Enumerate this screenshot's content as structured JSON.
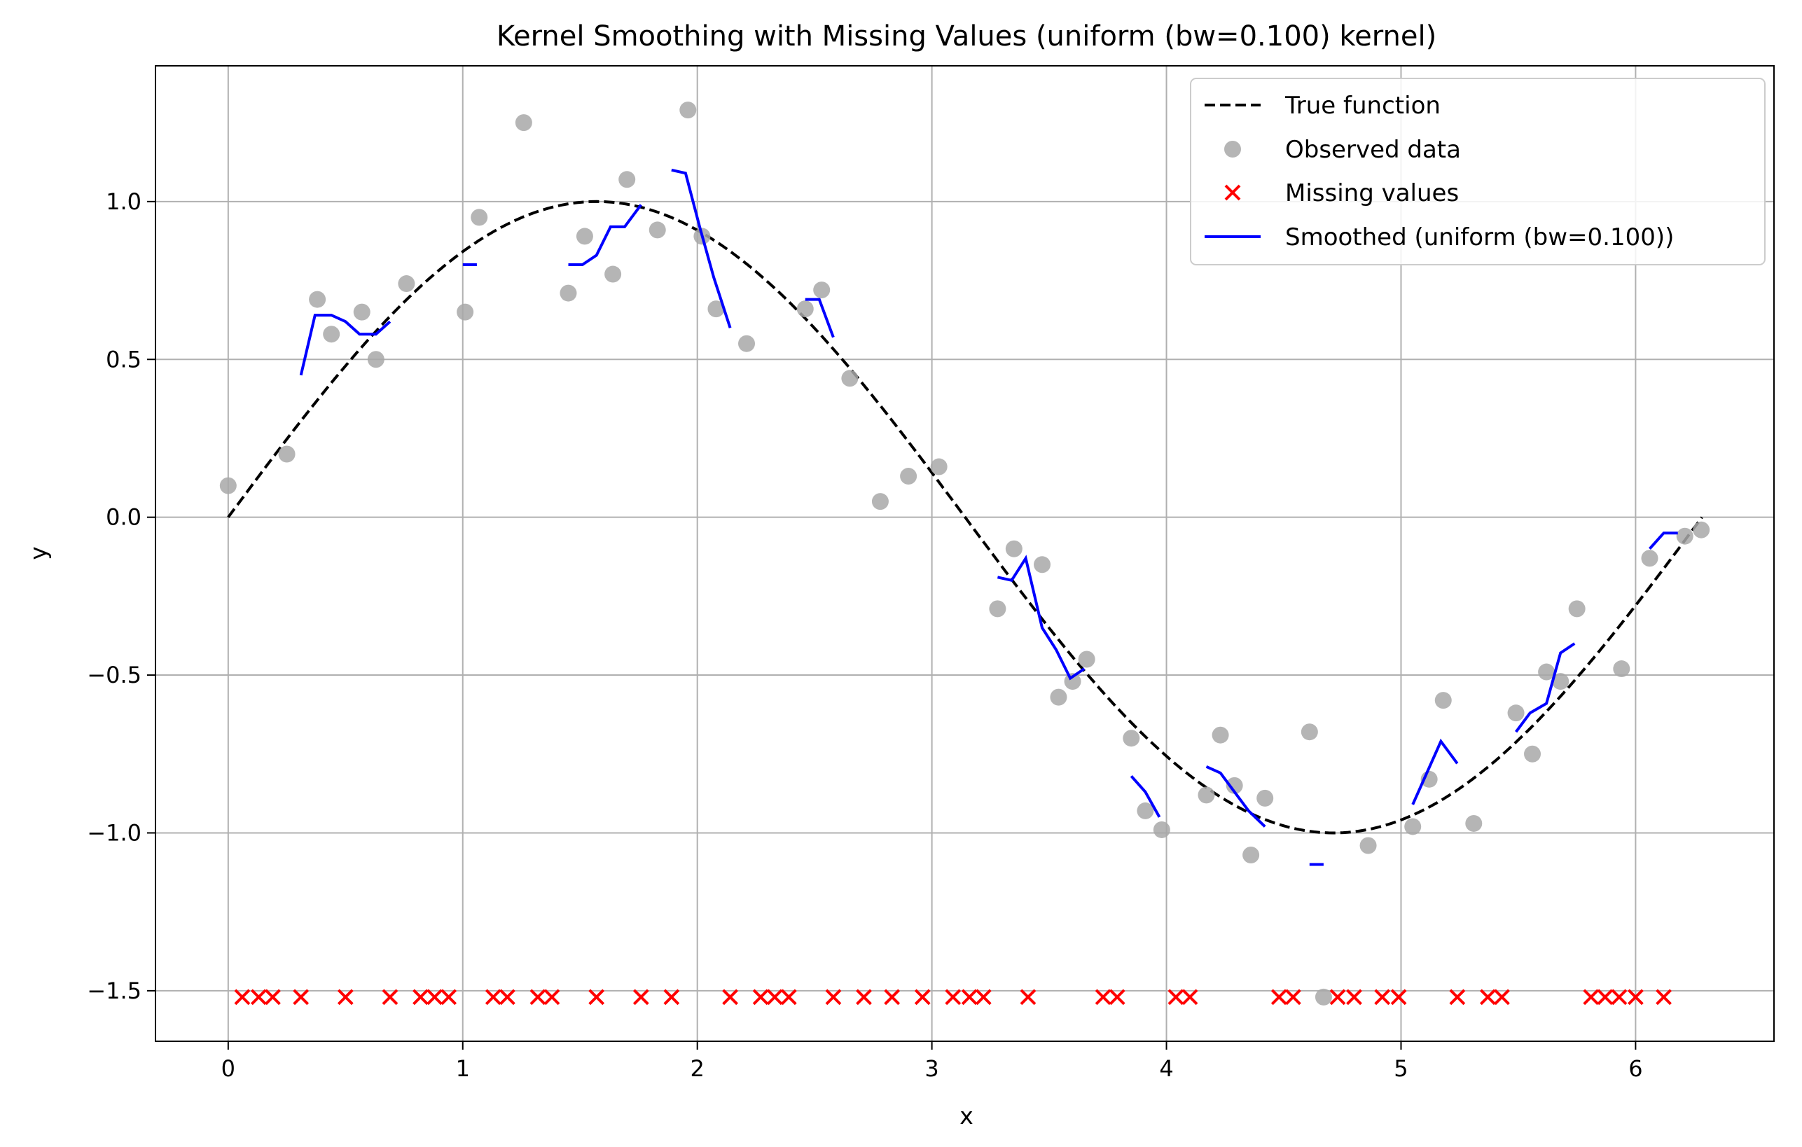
{
  "chart_data": {
    "type": "line",
    "title": "Kernel Smoothing with Missing Values (uniform (bw=0.100) kernel)",
    "xlabel": "x",
    "ylabel": "y",
    "xlim": [
      -0.31,
      6.59
    ],
    "ylim": [
      -1.66,
      1.43
    ],
    "xticks": [
      0,
      1,
      2,
      3,
      4,
      5,
      6
    ],
    "yticks": [
      -1.5,
      -1.0,
      -0.5,
      0.0,
      0.5,
      1.0
    ],
    "xtick_labels": [
      "0",
      "1",
      "2",
      "3",
      "4",
      "5",
      "6"
    ],
    "ytick_labels": [
      "−1.5",
      "−1.0",
      "−0.5",
      "0.0",
      "0.5",
      "1.0"
    ],
    "grid": true,
    "legend_position": "top-right",
    "series": [
      {
        "name": "True function",
        "kind": "line",
        "style": "dashed",
        "color": "#000000",
        "function": "sin(x)",
        "x_range": [
          0,
          6.283
        ]
      },
      {
        "name": "Observed data",
        "kind": "scatter",
        "color": "#a8a8a8",
        "x": [
          0.0,
          0.25,
          0.38,
          0.44,
          0.57,
          0.63,
          0.76,
          1.01,
          1.07,
          1.26,
          1.45,
          1.52,
          1.64,
          1.7,
          1.83,
          1.96,
          2.02,
          2.08,
          2.21,
          2.46,
          2.53,
          2.65,
          2.78,
          2.9,
          3.03,
          3.28,
          3.35,
          3.47,
          3.54,
          3.6,
          3.66,
          3.85,
          3.91,
          3.98,
          4.17,
          4.23,
          4.29,
          4.36,
          4.42,
          4.61,
          4.67,
          4.86,
          5.05,
          5.12,
          5.18,
          5.31,
          5.49,
          5.56,
          5.62,
          5.68,
          5.75,
          5.94,
          6.06,
          6.21,
          6.28
        ],
        "y": [
          0.1,
          0.2,
          0.69,
          0.58,
          0.65,
          0.5,
          0.74,
          0.65,
          0.95,
          1.25,
          0.71,
          0.89,
          0.77,
          1.07,
          0.91,
          1.29,
          0.89,
          0.66,
          0.55,
          0.66,
          0.72,
          0.44,
          0.05,
          0.13,
          0.16,
          -0.29,
          -0.1,
          -0.15,
          -0.57,
          -0.52,
          -0.45,
          -0.7,
          -0.93,
          -0.99,
          -0.88,
          -0.69,
          -0.85,
          -1.07,
          -0.89,
          -0.68,
          -1.52,
          -1.04,
          -0.98,
          -0.83,
          -0.58,
          -0.97,
          -0.62,
          -0.75,
          -0.49,
          -0.52,
          -0.29,
          -0.48,
          -0.13,
          -0.06,
          -0.04
        ]
      },
      {
        "name": "Missing values",
        "kind": "scatter",
        "marker": "x",
        "color": "#ff0000",
        "y_constant": -1.52,
        "x": [
          0.06,
          0.13,
          0.19,
          0.31,
          0.5,
          0.69,
          0.82,
          0.88,
          0.94,
          1.13,
          1.19,
          1.32,
          1.38,
          1.57,
          1.76,
          1.89,
          2.14,
          2.27,
          2.33,
          2.39,
          2.58,
          2.71,
          2.83,
          2.96,
          3.09,
          3.16,
          3.22,
          3.41,
          3.73,
          3.79,
          4.04,
          4.1,
          4.48,
          4.54,
          4.73,
          4.8,
          4.92,
          4.99,
          5.24,
          5.37,
          5.43,
          5.81,
          5.87,
          5.93,
          6.0,
          6.12
        ]
      },
      {
        "name": "Smoothed (uniform (bw=0.100))",
        "kind": "line",
        "style": "solid",
        "color": "#0000ff",
        "segments": [
          {
            "x": [
              0.31,
              0.37,
              0.44,
              0.5,
              0.56,
              0.63,
              0.69
            ],
            "y": [
              0.45,
              0.64,
              0.64,
              0.62,
              0.58,
              0.58,
              0.62
            ]
          },
          {
            "x": [
              1.0,
              1.06
            ],
            "y": [
              0.8,
              0.8
            ]
          },
          {
            "x": [
              1.45,
              1.51,
              1.57,
              1.63,
              1.69,
              1.76
            ],
            "y": [
              0.8,
              0.8,
              0.83,
              0.92,
              0.92,
              0.99
            ]
          },
          {
            "x": [
              1.89,
              1.95,
              2.01,
              2.07,
              2.14
            ],
            "y": [
              1.1,
              1.09,
              0.92,
              0.76,
              0.6
            ]
          },
          {
            "x": [
              2.46,
              2.52,
              2.58
            ],
            "y": [
              0.69,
              0.69,
              0.57
            ]
          },
          {
            "x": [
              3.28,
              3.34,
              3.4,
              3.47,
              3.53,
              3.59,
              3.65
            ],
            "y": [
              -0.19,
              -0.2,
              -0.13,
              -0.35,
              -0.42,
              -0.51,
              -0.48
            ]
          },
          {
            "x": [
              3.85,
              3.91,
              3.97
            ],
            "y": [
              -0.82,
              -0.87,
              -0.95
            ]
          },
          {
            "x": [
              4.17,
              4.23,
              4.29,
              4.35,
              4.42
            ],
            "y": [
              -0.79,
              -0.81,
              -0.87,
              -0.93,
              -0.98
            ]
          },
          {
            "x": [
              4.61,
              4.67
            ],
            "y": [
              -1.1,
              -1.1
            ]
          },
          {
            "x": [
              5.05,
              5.11,
              5.17,
              5.24
            ],
            "y": [
              -0.91,
              -0.81,
              -0.71,
              -0.78
            ]
          },
          {
            "x": [
              5.49,
              5.55,
              5.62,
              5.68,
              5.74
            ],
            "y": [
              -0.68,
              -0.62,
              -0.59,
              -0.43,
              -0.4
            ]
          },
          {
            "x": [
              6.06,
              6.12,
              6.18
            ],
            "y": [
              -0.1,
              -0.05,
              -0.05
            ]
          }
        ]
      }
    ]
  }
}
